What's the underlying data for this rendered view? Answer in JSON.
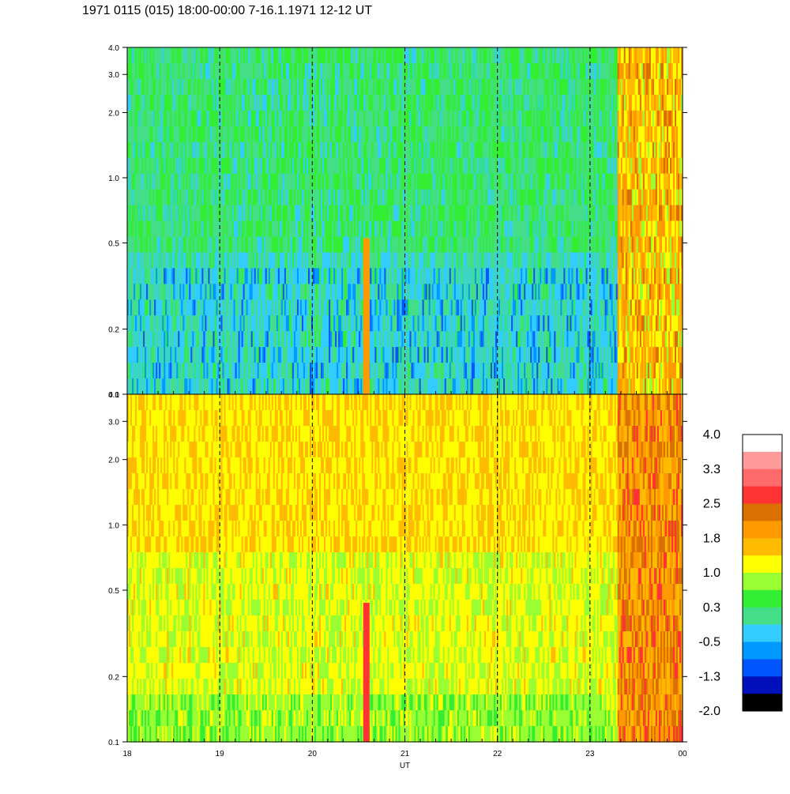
{
  "chart_data": {
    "type": "heatmap",
    "title": "1971 0115 (015) 18:00-00:00 7-16.1.1971  12-12 UT",
    "xlabel": "UT",
    "x_tick_labels": [
      "18",
      "19",
      "20",
      "21",
      "22",
      "23",
      "00"
    ],
    "x_range_hours": [
      18,
      24
    ],
    "y_scale": "log",
    "y_range": [
      0.1,
      4.0
    ],
    "y_tick_labels": [
      "0.1",
      "0.2",
      "0.5",
      "1.0",
      "2.0",
      "3.0",
      "4.0"
    ],
    "y_tick_values": [
      0.1,
      0.2,
      0.5,
      1.0,
      2.0,
      3.0,
      4.0
    ],
    "panels": 2,
    "grid": "dashed vertical lines at hourly ticks",
    "colorbar": {
      "labels": [
        "4.0",
        "3.3",
        "2.5",
        "1.8",
        "1.0",
        "0.3",
        "-0.5",
        "-1.3",
        "-2.0"
      ],
      "colors": [
        "#ffffff",
        "#ff9a9a",
        "#ff6a6a",
        "#ff3333",
        "#d97000",
        "#ff9900",
        "#ffbb00",
        "#ffff00",
        "#99ff33",
        "#33ee33",
        "#44dd88",
        "#33ccff",
        "#0099ff",
        "#0055ff",
        "#0011bb",
        "#000000"
      ]
    }
  }
}
